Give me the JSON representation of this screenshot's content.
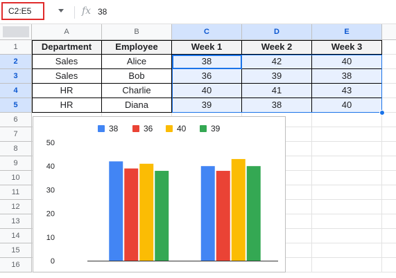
{
  "formula_bar": {
    "name_box": "C2:E5",
    "fx_label": "fx",
    "value": "38"
  },
  "columns": [
    "A",
    "B",
    "C",
    "D",
    "E"
  ],
  "rows": [
    "1",
    "2",
    "3",
    "4",
    "5",
    "6",
    "7",
    "8",
    "9",
    "10",
    "11",
    "12",
    "13",
    "14",
    "15",
    "16"
  ],
  "table": {
    "headers": [
      "Department",
      "Employee",
      "Week 1",
      "Week 2",
      "Week 3"
    ],
    "data": [
      [
        "Sales",
        "Alice",
        "38",
        "42",
        "40"
      ],
      [
        "Sales",
        "Bob",
        "36",
        "39",
        "38"
      ],
      [
        "HR",
        "Charlie",
        "40",
        "41",
        "43"
      ],
      [
        "HR",
        "Diana",
        "39",
        "38",
        "40"
      ]
    ]
  },
  "colors": {
    "blue": "#4285f4",
    "red": "#ea4335",
    "yellow": "#fbbc04",
    "green": "#34a853",
    "selection": "#1a73e8",
    "name_box_highlight": "#e02b2b"
  },
  "chart_data": {
    "type": "bar",
    "title": "",
    "xlabel": "",
    "ylabel": "",
    "categories": [
      "",
      ""
    ],
    "series": [
      {
        "name": "38",
        "color": "#4285f4",
        "values": [
          42,
          40
        ]
      },
      {
        "name": "36",
        "color": "#ea4335",
        "values": [
          39,
          38
        ]
      },
      {
        "name": "40",
        "color": "#fbbc04",
        "values": [
          41,
          43
        ]
      },
      {
        "name": "39",
        "color": "#34a853",
        "values": [
          38,
          40
        ]
      }
    ],
    "ylim": [
      0,
      50
    ],
    "yticks": [
      0,
      10,
      20,
      30,
      40,
      50
    ],
    "legend": "top",
    "grid": false
  }
}
